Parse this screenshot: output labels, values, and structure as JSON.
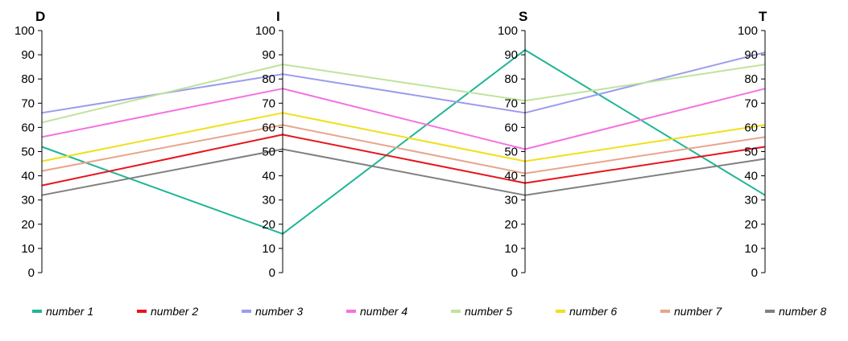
{
  "chart_data": {
    "type": "line",
    "subtype": "parallel-coordinates",
    "axes": [
      "D",
      "I",
      "S",
      "T"
    ],
    "ylim": [
      0,
      100
    ],
    "ticks": [
      0,
      10,
      20,
      30,
      40,
      50,
      60,
      70,
      80,
      90,
      100
    ],
    "grid": false,
    "legend_position": "bottom",
    "series": [
      {
        "name": "number 1",
        "color": "#1fb596",
        "values": [
          52,
          16,
          92,
          32
        ]
      },
      {
        "name": "number 2",
        "color": "#e8141c",
        "values": [
          36,
          57,
          37,
          52
        ]
      },
      {
        "name": "number 3",
        "color": "#9b9cee",
        "values": [
          66,
          82,
          66,
          91
        ]
      },
      {
        "name": "number 4",
        "color": "#f472e0",
        "values": [
          56,
          76,
          51,
          76
        ]
      },
      {
        "name": "number 5",
        "color": "#bfe39b",
        "values": [
          62,
          86,
          71,
          86
        ]
      },
      {
        "name": "number 6",
        "color": "#f0e01a",
        "values": [
          46,
          66,
          46,
          61
        ]
      },
      {
        "name": "number 7",
        "color": "#e9a48b",
        "values": [
          42,
          61,
          41,
          56
        ]
      },
      {
        "name": "number 8",
        "color": "#808080",
        "values": [
          32,
          51,
          32,
          47
        ]
      }
    ]
  }
}
